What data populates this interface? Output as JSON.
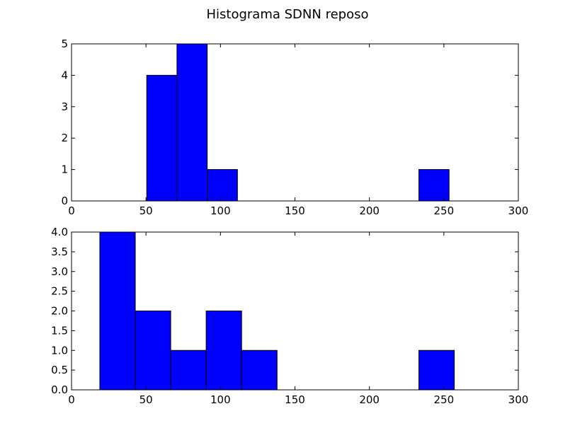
{
  "chart_data": {
    "title": "Histograma SDNN reposo",
    "charts": [
      {
        "type": "bar",
        "title": "",
        "xlabel": "",
        "ylabel": "",
        "xlim": [
          0,
          300
        ],
        "ylim": [
          0,
          5
        ],
        "xticks": [
          0,
          50,
          100,
          150,
          200,
          250,
          300
        ],
        "xtick_labels": [
          "0",
          "50",
          "100",
          "150",
          "200",
          "250",
          "300"
        ],
        "yticks": [
          0,
          1,
          2,
          3,
          4,
          5
        ],
        "ytick_labels": [
          "0",
          "1",
          "2",
          "3",
          "4",
          "5"
        ],
        "grid": false,
        "bars": [
          {
            "x0": 50.5,
            "x1": 70.8,
            "value": 4
          },
          {
            "x0": 70.8,
            "x1": 91.1,
            "value": 5
          },
          {
            "x0": 91.1,
            "x1": 111.4,
            "value": 1
          },
          {
            "x0": 111.4,
            "x1": 131.7,
            "value": 0
          },
          {
            "x0": 131.7,
            "x1": 152.0,
            "value": 0
          },
          {
            "x0": 152.0,
            "x1": 172.3,
            "value": 0
          },
          {
            "x0": 172.3,
            "x1": 192.6,
            "value": 0
          },
          {
            "x0": 192.6,
            "x1": 212.9,
            "value": 0
          },
          {
            "x0": 212.9,
            "x1": 233.2,
            "value": 0
          },
          {
            "x0": 233.2,
            "x1": 253.5,
            "value": 1
          }
        ]
      },
      {
        "type": "bar",
        "title": "",
        "xlabel": "",
        "ylabel": "",
        "xlim": [
          0,
          300
        ],
        "ylim": [
          0,
          4
        ],
        "xticks": [
          0,
          50,
          100,
          150,
          200,
          250,
          300
        ],
        "xtick_labels": [
          "0",
          "50",
          "100",
          "150",
          "200",
          "250",
          "300"
        ],
        "yticks": [
          0,
          0.5,
          1,
          1.5,
          2,
          2.5,
          3,
          3.5,
          4
        ],
        "ytick_labels": [
          "0.0",
          "0.5",
          "1.0",
          "1.5",
          "2.0",
          "2.5",
          "3.0",
          "3.5",
          "4.0"
        ],
        "grid": false,
        "bars": [
          {
            "x0": 19.0,
            "x1": 42.8,
            "value": 4
          },
          {
            "x0": 42.8,
            "x1": 66.6,
            "value": 2
          },
          {
            "x0": 66.6,
            "x1": 90.4,
            "value": 1
          },
          {
            "x0": 90.4,
            "x1": 114.2,
            "value": 2
          },
          {
            "x0": 114.2,
            "x1": 138.0,
            "value": 1
          },
          {
            "x0": 138.0,
            "x1": 161.8,
            "value": 0
          },
          {
            "x0": 161.8,
            "x1": 185.6,
            "value": 0
          },
          {
            "x0": 185.6,
            "x1": 209.4,
            "value": 0
          },
          {
            "x0": 209.4,
            "x1": 233.2,
            "value": 0
          },
          {
            "x0": 233.2,
            "x1": 257.0,
            "value": 1
          }
        ]
      }
    ]
  },
  "colors": {
    "bar_fill": "#0000ff",
    "bar_edge": "#000000",
    "background": "#ffffff"
  }
}
